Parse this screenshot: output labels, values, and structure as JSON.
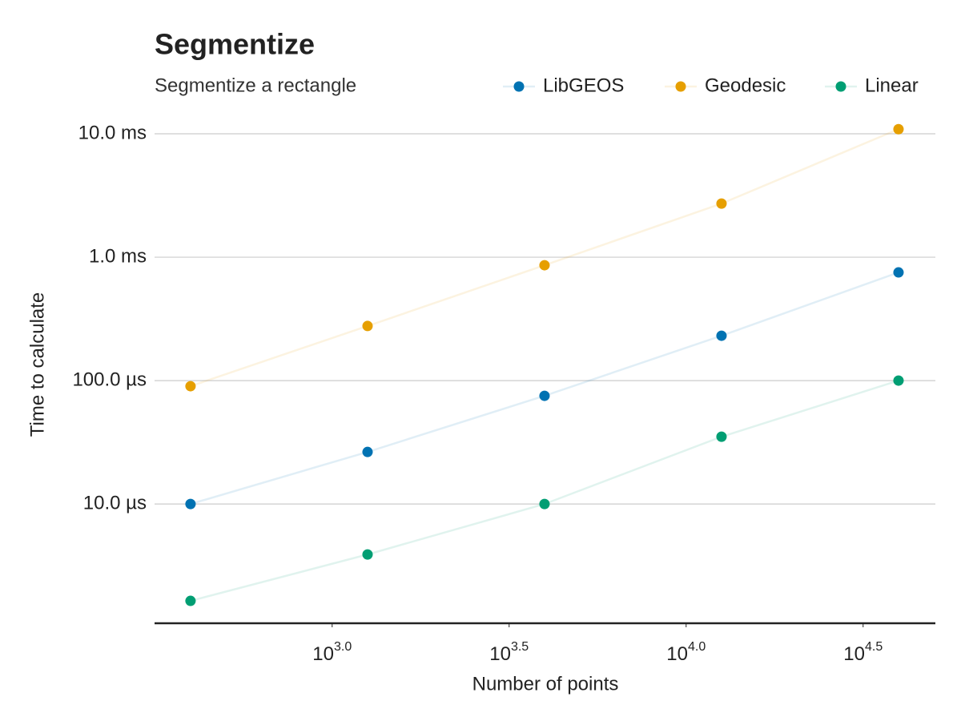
{
  "chart_data": {
    "type": "line",
    "title": "Segmentize",
    "subtitle": "Segmentize a rectangle",
    "x_label": "Number of points",
    "y_label": "Time to calculate",
    "x_scale": "log",
    "y_scale": "log",
    "grid": true,
    "legend": "top-right",
    "x": [
      398,
      1259,
      3981,
      12589,
      39811
    ],
    "xlim": [
      315,
      50600
    ],
    "xticks": [
      {
        "value": 1000,
        "label": "10^3.0"
      },
      {
        "value": 3162,
        "label": "10^3.5"
      },
      {
        "value": 10000,
        "label": "10^4.0"
      },
      {
        "value": 31623,
        "label": "10^4.5"
      }
    ],
    "ylim": [
      0.00108,
      12.9
    ],
    "yticks": [
      {
        "value": 0.01,
        "label": "10.0 µs"
      },
      {
        "value": 0.1,
        "label": "100.0 µs"
      },
      {
        "value": 1,
        "label": "1.0 ms"
      },
      {
        "value": 10,
        "label": "10.0 ms"
      }
    ],
    "series": [
      {
        "name": "LibGEOS",
        "color": "#0072b2",
        "values": [
          0.01,
          0.0264,
          0.0753,
          0.231,
          0.753
        ]
      },
      {
        "name": "Geodesic",
        "color": "#e69f00",
        "values": [
          0.0901,
          0.277,
          0.861,
          2.72,
          10.9
        ]
      },
      {
        "name": "Linear",
        "color": "#009e73",
        "values": [
          0.00164,
          0.0039,
          0.01,
          0.0351,
          0.1
        ]
      }
    ]
  }
}
